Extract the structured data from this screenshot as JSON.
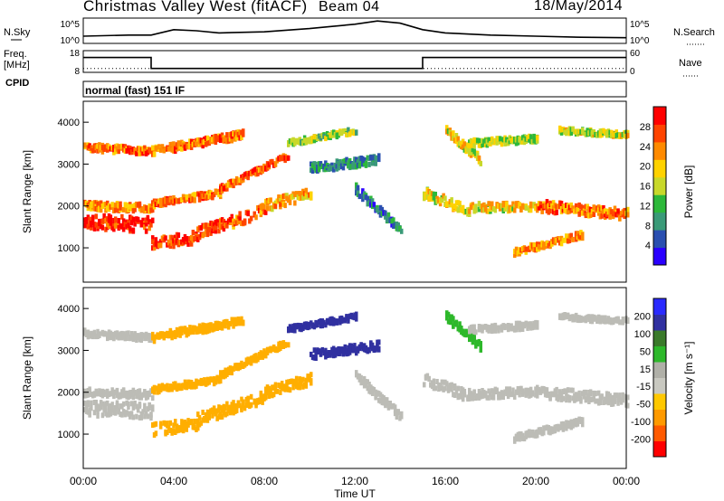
{
  "header": {
    "title": "Christmas Valley West (fitACF)",
    "beam": "Beam 04",
    "date": "18/May/2014"
  },
  "side_labels": {
    "nsky": "N.Sky",
    "freq": "Freq.",
    "freq_unit": "[MHz]",
    "cpid": "CPID",
    "nsearch": "N.Search",
    "nave": "Nave"
  },
  "mode_text": "normal (fast) 151 IF",
  "colors": {
    "power_scale": [
      "#2a00ff",
      "#2a4fb0",
      "#3a9a78",
      "#2db83a",
      "#c8d82a",
      "#ffd200",
      "#ff8a00",
      "#ff4400",
      "#ff0000"
    ],
    "velocity_scale": [
      "#ff0000",
      "#ff5a00",
      "#ff9a00",
      "#ffc800",
      "#c8c8c0",
      "#b0b0a8",
      "#2db82a",
      "#3a7a2a",
      "#3030a0",
      "#2a2aff"
    ],
    "ground_scatter": "#bcbcb6"
  },
  "chart_data": [
    {
      "type": "line",
      "name": "sky-and-search-noise",
      "x_start_hour": 0,
      "x_end_hour": 24,
      "yleft_ticks": [
        "10^5",
        "10^0"
      ],
      "yright_ticks": [
        "10^5",
        "10^0"
      ],
      "left_label": "N.Sky",
      "right_label": "N.Search",
      "series": [
        {
          "x": [
            0,
            2,
            3,
            4,
            5,
            6,
            8,
            10,
            11,
            12,
            13,
            14,
            15,
            16,
            18,
            20,
            22,
            24
          ],
          "y": [
            0.25,
            0.3,
            0.3,
            0.55,
            0.5,
            0.4,
            0.45,
            0.6,
            0.7,
            0.8,
            0.95,
            0.85,
            0.55,
            0.4,
            0.3,
            0.25,
            0.2,
            0.18
          ]
        }
      ]
    },
    {
      "type": "line",
      "name": "frequency-and-nave",
      "yleft_ticks": [
        "18",
        "8"
      ],
      "yright_ticks": [
        "60",
        "0"
      ],
      "series": [
        {
          "name": "Freq",
          "x": [
            0,
            3,
            3,
            15,
            15,
            24
          ],
          "y": [
            0.7,
            0.7,
            0.15,
            0.15,
            0.7,
            0.7
          ]
        },
        {
          "name": "Nave",
          "x": [
            0,
            24
          ],
          "y": [
            0.15,
            0.15
          ]
        }
      ]
    },
    {
      "type": "heatmap",
      "name": "power",
      "xlabel": "",
      "ylabel": "Slant Range [km]",
      "x_range_hours": [
        0,
        24
      ],
      "y_range_km": [
        180,
        4500
      ],
      "yticks": [
        1000,
        2000,
        3000,
        4000
      ],
      "colorbar_label": "Power [dB]",
      "colorbar_ticks": [
        "28",
        "24",
        "20",
        "16",
        "12",
        "8",
        "4"
      ]
    },
    {
      "type": "heatmap",
      "name": "velocity",
      "xlabel": "Time UT",
      "ylabel": "Slant Range [km]",
      "x_range_hours": [
        0,
        24
      ],
      "y_range_km": [
        180,
        4500
      ],
      "yticks": [
        1000,
        2000,
        3000,
        4000
      ],
      "xticks": [
        "00:00",
        "04:00",
        "08:00",
        "12:00",
        "16:00",
        "20:00",
        "00:00"
      ],
      "colorbar_label": "Velocity [m s⁻¹]",
      "colorbar_ticks": [
        "200",
        "100",
        "50",
        "15",
        "-15",
        "-50",
        "-100",
        "-200"
      ]
    }
  ]
}
